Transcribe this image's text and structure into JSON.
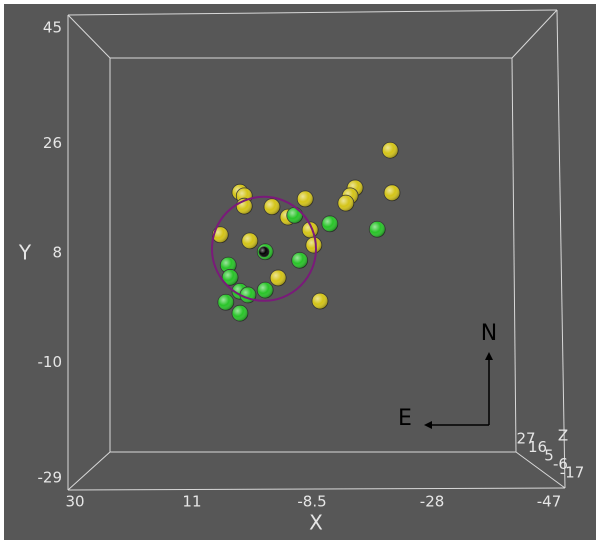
{
  "chart_data": {
    "type": "scatter3d",
    "xlabel": "X",
    "ylabel": "Y",
    "zlabel": "Z",
    "xlim": [
      30,
      -47
    ],
    "ylim": [
      -29,
      45
    ],
    "xticks": [
      30,
      11,
      -8.5,
      -28,
      -47
    ],
    "yticks": [
      45,
      26,
      8,
      -10,
      -29
    ],
    "zticks": [
      27,
      16,
      5,
      -6,
      -17
    ],
    "compass": {
      "north": "N",
      "east": "E"
    },
    "series": [
      {
        "color": "#d4c418",
        "x": [
          -21.2,
          -15.5,
          -14.7,
          -14.0,
          -21.5,
          3.2,
          2.5,
          2.5,
          -2.0,
          -7.4,
          -4.6,
          -8.2,
          -8.8,
          6.4,
          1.6,
          -3.0,
          -9.8
        ],
        "values": [
          24.9,
          18.7,
          17.4,
          16.2,
          17.9,
          18.0,
          17.4,
          15.7,
          15.6,
          16.9,
          13.9,
          11.8,
          9.3,
          11.0,
          10.0,
          3.9,
          0.1
        ]
      },
      {
        "color": "#28c428",
        "x": [
          -5.7,
          -11.4,
          -19.1,
          -0.9,
          -6.5,
          5.1,
          4.8,
          3.2,
          1.9,
          -0.9,
          5.5,
          3.2
        ],
        "values": [
          14.2,
          12.8,
          11.9,
          8.2,
          6.8,
          6.0,
          4.0,
          1.7,
          1.1,
          1.9,
          -0.1,
          -1.9
        ]
      },
      {
        "color": "#000000",
        "x": [
          -0.7
        ],
        "values": [
          8.2
        ]
      }
    ]
  }
}
